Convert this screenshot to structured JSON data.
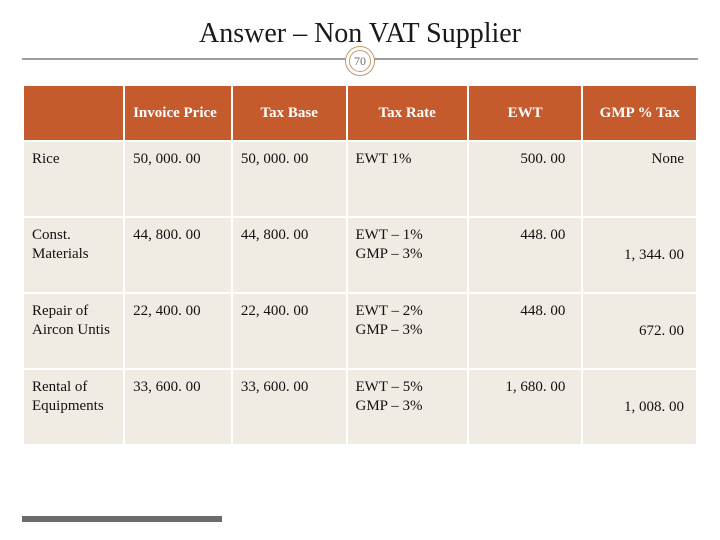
{
  "title": "Answer – Non VAT Supplier",
  "badge": "70",
  "columns": [
    "",
    "Invoice Price",
    "Tax Base",
    "Tax Rate",
    "EWT",
    "GMP % Tax"
  ],
  "rows": [
    {
      "item": "Rice",
      "invoice_price": "50, 000. 00",
      "tax_base": "50, 000. 00",
      "tax_rate": "EWT 1%",
      "ewt": "500. 00",
      "gmp": "None",
      "gmp_twoline": false
    },
    {
      "item": "Const. Materials",
      "invoice_price": "44, 800. 00",
      "tax_base": "44, 800. 00",
      "tax_rate": "EWT – 1% GMP – 3%",
      "ewt": "448. 00",
      "gmp": "1, 344. 00",
      "gmp_twoline": true
    },
    {
      "item": "Repair of Aircon Untis",
      "invoice_price": "22, 400. 00",
      "tax_base": "22, 400. 00",
      "tax_rate": "EWT – 2% GMP – 3%",
      "ewt": "448. 00",
      "gmp": "672. 00",
      "gmp_twoline": true
    },
    {
      "item": "Rental of Equipments",
      "invoice_price": "33, 600. 00",
      "tax_base": "33, 600. 00",
      "tax_rate": "EWT – 5% GMP – 3%",
      "ewt": "1, 680. 00",
      "gmp": "1, 008. 00",
      "gmp_twoline": true
    }
  ],
  "colors": {
    "header_bg": "#c55a2d",
    "header_text": "#ffffff",
    "cell_bg": "#f0ece4",
    "cell_text": "#111111",
    "border": "#ffffff",
    "accent_line": "#6b6b6b",
    "badge_border": "#c49a6c"
  }
}
